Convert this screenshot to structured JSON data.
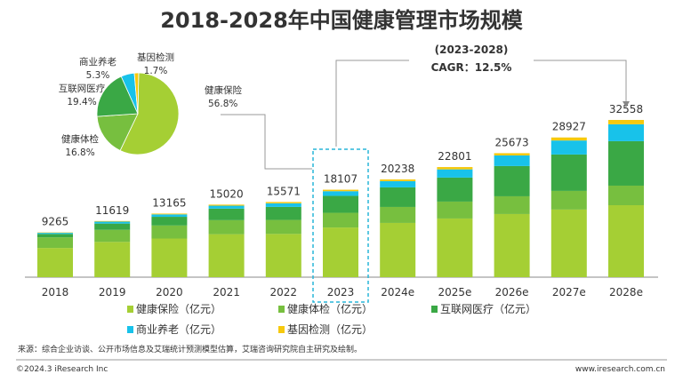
{
  "chart_data": {
    "type": "bar",
    "stacked": true,
    "title": "2018-2028年中国健康管理市场规模",
    "categories": [
      "2018",
      "2019",
      "2020",
      "2021",
      "2022",
      "2023",
      "2024e",
      "2025e",
      "2026e",
      "2027e",
      "2028e"
    ],
    "totals": [
      9265,
      11619,
      13165,
      15020,
      15571,
      18107,
      20238,
      22801,
      25673,
      28927,
      32558
    ],
    "series": [
      {
        "name": "健康保险（亿元）",
        "color": "#a5cf34",
        "values": [
          6050,
          7300,
          8000,
          8900,
          8950,
          10285,
          11230,
          12150,
          13070,
          14000,
          14900
        ]
      },
      {
        "name": "健康体检（亿元）",
        "color": "#77bf3f",
        "values": [
          2200,
          2500,
          2700,
          2900,
          2900,
          3042,
          3310,
          3500,
          3680,
          3860,
          4050
        ]
      },
      {
        "name": "互联网医疗（亿元）",
        "color": "#3aa845",
        "values": [
          700,
          1300,
          1800,
          2400,
          2700,
          3513,
          4050,
          4970,
          6260,
          7540,
          9208
        ]
      },
      {
        "name": "商业养老（亿元）",
        "color": "#18c2ea",
        "values": [
          230,
          400,
          500,
          600,
          750,
          960,
          1300,
          1700,
          2200,
          2900,
          3500
        ]
      },
      {
        "name": "基因检测（亿元）",
        "color": "#f6c90e",
        "values": [
          85,
          119,
          165,
          220,
          271,
          307,
          348,
          481,
          463,
          627,
          900
        ]
      }
    ],
    "highlight_category": "2023",
    "legend_position": "bottom",
    "grid": false,
    "pie": {
      "year": "2023",
      "slices": [
        {
          "label": "健康保险",
          "pct_label": "56.8%",
          "value": 56.8,
          "color": "#a5cf34"
        },
        {
          "label": "健康体检",
          "pct_label": "16.8%",
          "value": 16.8,
          "color": "#77bf3f"
        },
        {
          "label": "互联网医疗",
          "pct_label": "19.4%",
          "value": 19.4,
          "color": "#3aa845"
        },
        {
          "label": "商业养老",
          "pct_label": "5.3%",
          "value": 5.3,
          "color": "#18c2ea"
        },
        {
          "label": "基因检测",
          "pct_label": "1.7%",
          "value": 1.7,
          "color": "#f6c90e"
        }
      ]
    },
    "annotation": {
      "period": "(2023-2028)",
      "cagr": "CAGR：12.5%"
    }
  },
  "footer": {
    "source": "来源：综合企业访谈、公开市场信息及艾瑞统计预测模型估算，艾瑞咨询研究院自主研究及绘制。",
    "copyright": "©2024.3 iResearch Inc",
    "website": "www.iresearch.com.cn"
  }
}
